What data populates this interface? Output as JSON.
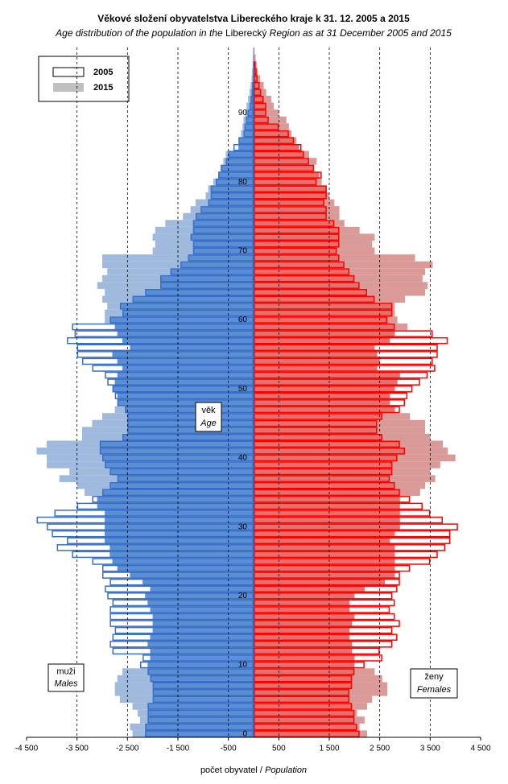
{
  "chart_data": {
    "type": "pyramid",
    "title": "Věkové složení obyvatelstva  Libereckého  kraje k 31. 12. 2005  a 2015",
    "subtitle": [
      {
        "text": "Age distribution of the population  in the",
        "italic": true
      },
      {
        "text": "Liberecký",
        "italic": false
      },
      {
        "text": "Region  as at 31 December 2005 and 2015",
        "italic": true
      }
    ],
    "x_label": [
      {
        "text": "počet obyvatel /",
        "italic": false
      },
      {
        "text": "Population",
        "italic": true
      }
    ],
    "y_label": [
      "věk",
      "Age"
    ],
    "males_label": [
      "muži",
      "Males"
    ],
    "females_label": [
      "ženy",
      "Females"
    ],
    "xlim": [
      -4500,
      4500
    ],
    "xticks": [
      {
        "value": -4500,
        "label": "-4 500"
      },
      {
        "value": -3500,
        "label": "-3 500"
      },
      {
        "value": -2500,
        "label": "-2 500"
      },
      {
        "value": -1500,
        "label": "-1 500"
      },
      -500,
      500,
      {
        "value": 1500,
        "label": "1 500"
      },
      {
        "value": 2500,
        "label": "2 500"
      },
      {
        "value": 3500,
        "label": "3 500"
      },
      {
        "value": 4500,
        "label": "4 500"
      }
    ],
    "ylim": [
      -0.5,
      99.5
    ],
    "yticks": [
      0,
      10,
      20,
      30,
      40,
      50,
      60,
      70,
      80,
      90
    ],
    "grid": true,
    "legend": "top-left",
    "male_colors": {
      "fill": "#9fbadc",
      "overlap": "#5b8fd4",
      "outline": "#3a6fc8"
    },
    "female_colors": {
      "fill": "#d99a98",
      "overlap": "#e8706c",
      "outline": "#ff0000"
    },
    "series": [
      {
        "name": "2005",
        "style": "outline",
        "males": [
          -2150,
          -2150,
          -2100,
          -2100,
          -2100,
          -2000,
          -2000,
          -2000,
          -2050,
          -2100,
          -2250,
          -2200,
          -2800,
          -2850,
          -2800,
          -2750,
          -2850,
          -2850,
          -2850,
          -2800,
          -2900,
          -2950,
          -2850,
          -3000,
          -3000,
          -3200,
          -3600,
          -3900,
          -3700,
          -4000,
          -4100,
          -4300,
          -3950,
          -3500,
          -3200,
          -3000,
          -2850,
          -2700,
          -2850,
          -2950,
          -3000,
          -3050,
          -3050,
          -2600,
          -2500,
          -2500,
          -2500,
          -2550,
          -2700,
          -2750,
          -2800,
          -2900,
          -2950,
          -3200,
          -3400,
          -3500,
          -3500,
          -3700,
          -3550,
          -3600,
          -2850,
          -2600,
          -2650,
          -2400,
          -2150,
          -1850,
          -1850,
          -1650,
          -1450,
          -1300,
          -1200,
          -1200,
          -1250,
          -1200,
          -1200,
          -1150,
          -1050,
          -900,
          -850,
          -850,
          -750,
          -700,
          -650,
          -550,
          -500,
          -400,
          -300,
          -200,
          -180,
          -150,
          -120,
          -80,
          -60,
          -40,
          -30,
          -20,
          -15,
          -10,
          -5,
          -5
        ],
        "females": [
          2100,
          2050,
          2000,
          2000,
          1950,
          1900,
          1900,
          1950,
          1950,
          2000,
          2200,
          2550,
          2500,
          2750,
          2850,
          2750,
          2900,
          2800,
          2700,
          2800,
          2750,
          2850,
          2900,
          2900,
          3100,
          3500,
          3650,
          3800,
          3900,
          3900,
          4050,
          3750,
          3500,
          3350,
          3100,
          2900,
          2800,
          2700,
          2750,
          2750,
          2850,
          3000,
          2900,
          2550,
          2450,
          2450,
          2550,
          2900,
          3000,
          3050,
          3150,
          3300,
          3450,
          3600,
          3550,
          3650,
          3650,
          3850,
          3550,
          2800,
          2650,
          2750,
          2750,
          2400,
          2250,
          2100,
          2000,
          1900,
          1800,
          1700,
          1650,
          1700,
          1700,
          1700,
          1600,
          1450,
          1450,
          1400,
          1450,
          1450,
          1250,
          1350,
          1200,
          1100,
          1000,
          950,
          800,
          700,
          500,
          300,
          250,
          250,
          200,
          150,
          120,
          80,
          60,
          40,
          20,
          10
        ]
      },
      {
        "name": "2015",
        "style": "fill",
        "males": [
          -2400,
          -2450,
          -2250,
          -2300,
          -2400,
          -2650,
          -2750,
          -2750,
          -2700,
          -2600,
          -2100,
          -2050,
          -2050,
          -2100,
          -2050,
          -2000,
          -2000,
          -2000,
          -2050,
          -2100,
          -2150,
          -2050,
          -2200,
          -2450,
          -2700,
          -2800,
          -2850,
          -2850,
          -2950,
          -2950,
          -2950,
          -2950,
          -2950,
          -3100,
          -3100,
          -3350,
          -3500,
          -3850,
          -3650,
          -4100,
          -4100,
          -4300,
          -4100,
          -3400,
          -3400,
          -3200,
          -3000,
          -2750,
          -2700,
          -2700,
          -2800,
          -2750,
          -2700,
          -2600,
          -2700,
          -2800,
          -2450,
          -2600,
          -2700,
          -2750,
          -2950,
          -2950,
          -2900,
          -3000,
          -2950,
          -3100,
          -3000,
          -2900,
          -3000,
          -3000,
          -2000,
          -1950,
          -2000,
          -1950,
          -1750,
          -1400,
          -1250,
          -1150,
          -950,
          -900,
          -800,
          -700,
          -650,
          -600,
          -550,
          -300,
          -280,
          -250,
          -220,
          -200,
          -170,
          -140,
          -110,
          -80,
          -60,
          -40,
          -30,
          -20,
          -15,
          -10
        ],
        "females": [
          2250,
          2100,
          2200,
          2050,
          2250,
          2350,
          2650,
          2650,
          2550,
          2400,
          2000,
          2000,
          1950,
          1950,
          1900,
          1900,
          1950,
          2000,
          1900,
          1900,
          2000,
          2200,
          2600,
          2800,
          2800,
          2800,
          2800,
          2800,
          2700,
          2800,
          2900,
          2900,
          2900,
          2900,
          2900,
          3300,
          3400,
          3600,
          3500,
          3700,
          4000,
          3850,
          3750,
          3500,
          3400,
          3400,
          3100,
          2800,
          2700,
          2700,
          2800,
          2850,
          2900,
          2450,
          2500,
          2450,
          2400,
          2700,
          2800,
          3050,
          2850,
          2800,
          2800,
          3000,
          3400,
          3450,
          3350,
          3400,
          3550,
          3200,
          2400,
          2350,
          2400,
          2100,
          1800,
          1700,
          1700,
          1600,
          1500,
          1450,
          1350,
          1300,
          1200,
          1250,
          1100,
          900,
          850,
          750,
          700,
          650,
          500,
          400,
          350,
          250,
          200,
          130,
          80,
          60,
          40,
          20
        ]
      }
    ]
  }
}
